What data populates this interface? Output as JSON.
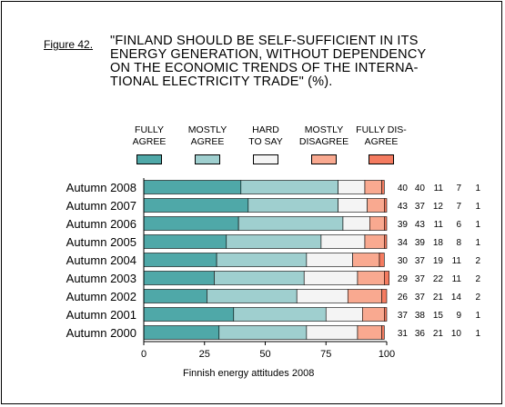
{
  "figure": {
    "label": "Figure 42.",
    "title_lines": [
      "\"FINLAND SHOULD BE SELF-SUFFICIENT IN ITS",
      "ENERGY GENERATION, WITHOUT DEPENDENCY",
      "ON THE ECONOMIC TRENDS OF THE INTERNA-",
      "TIONAL ELECTRICITY TRADE\" (%)."
    ],
    "footnote": "Finnish energy attitudes 2008"
  },
  "legend": [
    {
      "line1": "FULLY",
      "line2": "AGREE"
    },
    {
      "line1": "MOSTLY",
      "line2": "AGREE"
    },
    {
      "line1": "HARD",
      "line2": "TO SAY"
    },
    {
      "line1": "MOSTLY",
      "line2": "DISAGREE"
    },
    {
      "line1": "FULLY DIS-",
      "line2": "AGREE"
    }
  ],
  "colors": [
    "#4fa8a8",
    "#9fcfcf",
    "#f4f4f4",
    "#f9a990",
    "#f47b60"
  ],
  "chart_data": {
    "type": "bar",
    "orientation": "horizontal",
    "stacked": true,
    "categories": [
      "Autumn 2008",
      "Autumn 2007",
      "Autumn 2006",
      "Autumn 2005",
      "Autumn 2004",
      "Autumn 2003",
      "Autumn 2002",
      "Autumn 2001",
      "Autumn 2000"
    ],
    "series": [
      {
        "name": "FULLY AGREE",
        "values": [
          40,
          43,
          39,
          34,
          30,
          29,
          26,
          37,
          31
        ]
      },
      {
        "name": "MOSTLY AGREE",
        "values": [
          40,
          37,
          43,
          39,
          37,
          37,
          37,
          38,
          36
        ]
      },
      {
        "name": "HARD TO SAY",
        "values": [
          11,
          12,
          11,
          18,
          19,
          22,
          21,
          15,
          21
        ]
      },
      {
        "name": "MOSTLY DISAGREE",
        "values": [
          7,
          7,
          6,
          8,
          11,
          11,
          14,
          9,
          10
        ]
      },
      {
        "name": "FULLY DISAGREE",
        "values": [
          1,
          1,
          1,
          1,
          2,
          2,
          2,
          1,
          1
        ]
      }
    ],
    "xlim": [
      0,
      100
    ],
    "xticks": [
      0,
      25,
      50,
      75,
      100
    ],
    "xlabel": "",
    "ylabel": "",
    "legend_position": "top",
    "grid": false
  }
}
